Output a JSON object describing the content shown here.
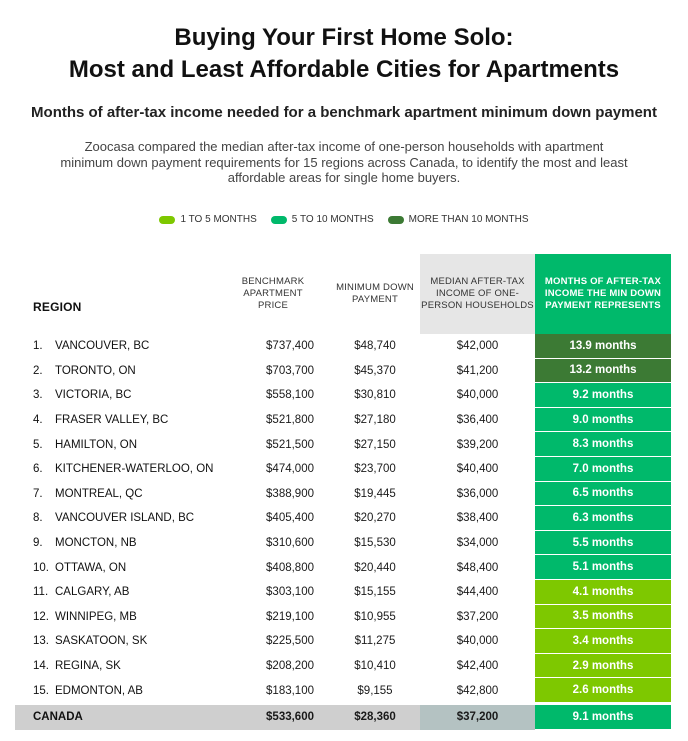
{
  "title_line1": "Buying Your First Home Solo:",
  "title_line2": "Most and Least Affordable Cities for Apartments",
  "subtitle": "Months of after-tax income needed for a benchmark apartment minimum down payment",
  "description": "Zoocasa compared the median after-tax income of one-person households with apartment minimum down payment requirements for 15 regions across Canada, to identify the most and least affordable areas for single home buyers.",
  "colors": {
    "light_green": "#7ec800",
    "mid_green": "#00b96b",
    "dark_green": "#3c7a34",
    "header_gray": "#e6e6e6",
    "total_gray": "#cfcfcf"
  },
  "legend": [
    {
      "label": "1 TO 5 MONTHS",
      "color": "#7ec800"
    },
    {
      "label": "5 TO 10 MONTHS",
      "color": "#00b96b"
    },
    {
      "label": "MORE THAN 10 MONTHS",
      "color": "#3c7a34"
    }
  ],
  "headers": {
    "region": "REGION",
    "price": "BENCHMARK APARTMENT PRICE",
    "down": "MINIMUM DOWN PAYMENT",
    "income": "MEDIAN AFTER-TAX INCOME OF ONE-PERSON HOUSEHOLDS",
    "months": "MONTHS OF AFTER-TAX INCOME THE MIN DOWN PAYMENT REPRESENTS"
  },
  "total": {
    "region": "CANADA",
    "price": "$533,600",
    "down": "$28,360",
    "income": "$37,200",
    "months": "9.1 months",
    "months_value": 9.1
  },
  "chart_data": {
    "type": "table",
    "columns": [
      "REGION",
      "BENCHMARK APARTMENT PRICE",
      "MINIMUM DOWN PAYMENT",
      "MEDIAN AFTER-TAX INCOME OF ONE-PERSON HOUSEHOLDS",
      "MONTHS OF AFTER-TAX INCOME THE MIN DOWN PAYMENT REPRESENTS"
    ],
    "rows": [
      {
        "rank": "1.",
        "region": "VANCOUVER, BC",
        "price": "$737,400",
        "down": "$48,740",
        "income": "$42,000",
        "months": "13.9 months",
        "months_value": 13.9
      },
      {
        "rank": "2.",
        "region": "TORONTO, ON",
        "price": "$703,700",
        "down": "$45,370",
        "income": "$41,200",
        "months": "13.2 months",
        "months_value": 13.2
      },
      {
        "rank": "3.",
        "region": "VICTORIA, BC",
        "price": "$558,100",
        "down": "$30,810",
        "income": "$40,000",
        "months": "9.2 months",
        "months_value": 9.2
      },
      {
        "rank": "4.",
        "region": "FRASER VALLEY, BC",
        "price": "$521,800",
        "down": "$27,180",
        "income": "$36,400",
        "months": "9.0 months",
        "months_value": 9.0
      },
      {
        "rank": "5.",
        "region": "HAMILTON, ON",
        "price": "$521,500",
        "down": "$27,150",
        "income": "$39,200",
        "months": "8.3 months",
        "months_value": 8.3
      },
      {
        "rank": "6.",
        "region": "KITCHENER-WATERLOO, ON",
        "price": "$474,000",
        "down": "$23,700",
        "income": "$40,400",
        "months": "7.0 months",
        "months_value": 7.0
      },
      {
        "rank": "7.",
        "region": "MONTREAL, QC",
        "price": "$388,900",
        "down": "$19,445",
        "income": "$36,000",
        "months": "6.5 months",
        "months_value": 6.5
      },
      {
        "rank": "8.",
        "region": "VANCOUVER ISLAND, BC",
        "price": "$405,400",
        "down": "$20,270",
        "income": "$38,400",
        "months": "6.3 months",
        "months_value": 6.3
      },
      {
        "rank": "9.",
        "region": "MONCTON, NB",
        "price": "$310,600",
        "down": "$15,530",
        "income": "$34,000",
        "months": "5.5 months",
        "months_value": 5.5
      },
      {
        "rank": "10.",
        "region": "OTTAWA, ON",
        "price": "$408,800",
        "down": "$20,440",
        "income": "$48,400",
        "months": "5.1 months",
        "months_value": 5.1
      },
      {
        "rank": "11.",
        "region": "CALGARY, AB",
        "price": "$303,100",
        "down": "$15,155",
        "income": "$44,400",
        "months": "4.1 months",
        "months_value": 4.1
      },
      {
        "rank": "12.",
        "region": "WINNIPEG, MB",
        "price": "$219,100",
        "down": "$10,955",
        "income": "$37,200",
        "months": "3.5 months",
        "months_value": 3.5
      },
      {
        "rank": "13.",
        "region": "SASKATOON, SK",
        "price": "$225,500",
        "down": "$11,275",
        "income": "$40,000",
        "months": "3.4 months",
        "months_value": 3.4
      },
      {
        "rank": "14.",
        "region": "REGINA, SK",
        "price": "$208,200",
        "down": "$10,410",
        "income": "$42,400",
        "months": "2.9 months",
        "months_value": 2.9
      },
      {
        "rank": "15.",
        "region": "EDMONTON, AB",
        "price": "$183,100",
        "down": "$9,155",
        "income": "$42,800",
        "months": "2.6 months",
        "months_value": 2.6
      }
    ]
  }
}
